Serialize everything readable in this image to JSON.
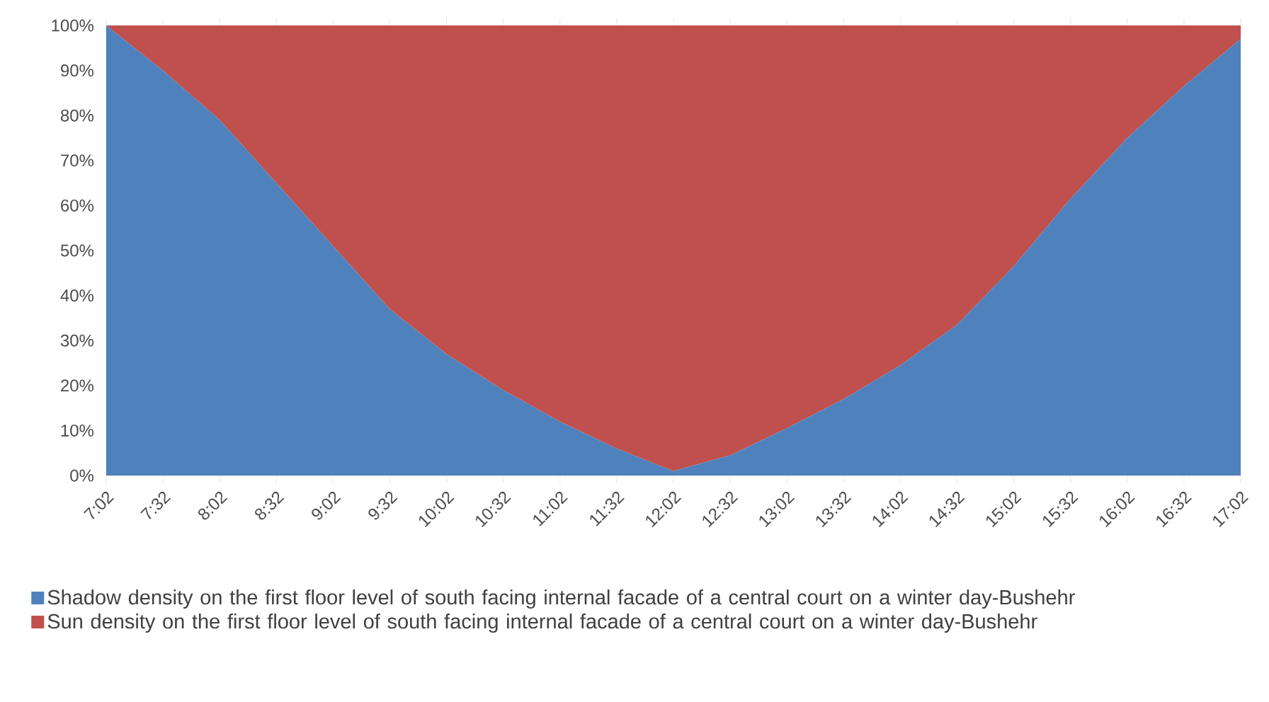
{
  "chart_data": {
    "type": "area",
    "stacked": true,
    "legend": "bottom",
    "categories": [
      "7:02",
      "7:32",
      "8:02",
      "8:32",
      "9:02",
      "9:32",
      "10:02",
      "10:32",
      "11:02",
      "11:32",
      "12:02",
      "12:32",
      "13:02",
      "13:32",
      "14:02",
      "14:32",
      "15:02",
      "15:32",
      "16:02",
      "16:32",
      "17:02"
    ],
    "ylim": [
      0,
      100
    ],
    "yticks": [
      {
        "value": 0,
        "label": "0%"
      },
      {
        "value": 10,
        "label": "10%"
      },
      {
        "value": 20,
        "label": "20%"
      },
      {
        "value": 30,
        "label": "30%"
      },
      {
        "value": 40,
        "label": "40%"
      },
      {
        "value": 50,
        "label": "50%"
      },
      {
        "value": 60,
        "label": "60%"
      },
      {
        "value": 70,
        "label": "70%"
      },
      {
        "value": 80,
        "label": "80%"
      },
      {
        "value": 90,
        "label": "90%"
      },
      {
        "value": 100,
        "label": "100%"
      }
    ],
    "series": [
      {
        "name": "Shadow density on the first floor level of south facing internal facade of a central court on a winter day-Bushehr",
        "color": "#4f81bd",
        "values": [
          100,
          90,
          79,
          65,
          51,
          37,
          27,
          19,
          12,
          6,
          1,
          4.5,
          10.5,
          17,
          24.5,
          33.5,
          46.5,
          61.5,
          75,
          86.5,
          97
        ]
      },
      {
        "name": "Sun density on the first floor level of south facing internal facade of a central court on a winter day-Bushehr",
        "color": "#c0504d",
        "values": [
          0,
          10,
          21,
          35,
          49,
          63,
          73,
          81,
          88,
          94,
          99,
          95.5,
          89.5,
          83,
          75.5,
          66.5,
          53.5,
          38.5,
          25,
          13.5,
          3
        ]
      }
    ]
  }
}
